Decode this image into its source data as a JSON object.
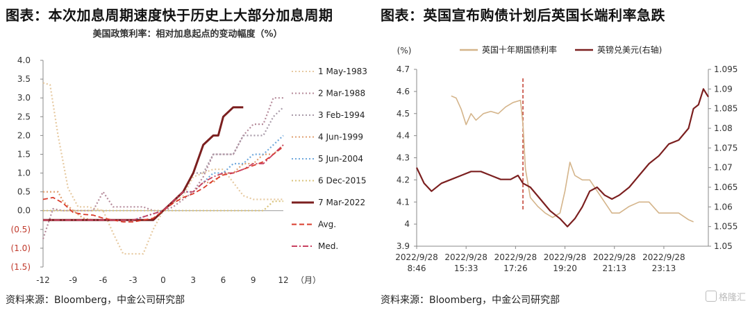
{
  "left": {
    "title": "图表：本次加息周期速度快于历史上大部分加息周期",
    "subtitle": "美国政策利率：相对加息起点的变动幅度（%）",
    "source": "资料来源：Bloomberg，中金公司研究部"
  },
  "right": {
    "title": "图表：英国宣布购债计划后英国长端利率急跌",
    "source": "资料来源：Bloomberg，中金公司研究部"
  },
  "watermark": "格隆汇",
  "chart_data": [
    {
      "type": "line",
      "title": "美国政策利率：相对加息起点的变动幅度（%）",
      "xlabel": "（月）",
      "ylabel": "",
      "xlim": [
        -12,
        12
      ],
      "ylim": [
        -1.5,
        4.0
      ],
      "x_ticks": [
        "-12",
        "-9",
        "-6",
        "-3",
        "0",
        "3",
        "6",
        "9",
        "12"
      ],
      "y_ticks": [
        "4.0",
        "3.5",
        "3.0",
        "2.5",
        "2.0",
        "1.5",
        "1.0",
        "0.5",
        "0.0",
        "(0.5)",
        "(1.0)",
        "(1.5)"
      ],
      "legend_position": "right",
      "series": [
        {
          "name": "1 May-1983",
          "color": "#e6c9a0",
          "dash": "dot",
          "points": [
            [
              -12,
              3.4
            ],
            [
              -11.3,
              3.35
            ],
            [
              -10.5,
              2.0
            ],
            [
              -9.5,
              0.6
            ],
            [
              -8.5,
              0.1
            ],
            [
              -7.5,
              0.1
            ],
            [
              -6,
              0.0
            ],
            [
              -5,
              -0.6
            ],
            [
              -4,
              -1.15
            ],
            [
              -3,
              -1.15
            ],
            [
              -2,
              -1.15
            ],
            [
              -1,
              -0.5
            ],
            [
              0,
              0.0
            ],
            [
              1,
              0.2
            ],
            [
              2,
              0.4
            ],
            [
              3,
              0.9
            ],
            [
              4,
              1.0
            ],
            [
              5,
              1.1
            ],
            [
              6,
              1.1
            ],
            [
              7,
              0.75
            ],
            [
              8,
              0.4
            ],
            [
              9,
              0.3
            ],
            [
              10,
              0.3
            ],
            [
              11,
              0.3
            ],
            [
              12,
              0.3
            ]
          ]
        },
        {
          "name": "2 Mar-1988",
          "color": "#b58a9a",
          "dash": "dot",
          "points": [
            [
              -12,
              -0.75
            ],
            [
              -11,
              0.05
            ],
            [
              -10,
              0.0
            ],
            [
              -9,
              0.0
            ],
            [
              -8,
              0.0
            ],
            [
              -7,
              0.0
            ],
            [
              -6,
              0.5
            ],
            [
              -5,
              0.1
            ],
            [
              -4,
              0.1
            ],
            [
              -3,
              0.1
            ],
            [
              -2,
              0.1
            ],
            [
              -1,
              0.0
            ],
            [
              0,
              0.0
            ],
            [
              1,
              0.1
            ],
            [
              2,
              0.3
            ],
            [
              3,
              0.5
            ],
            [
              4,
              0.9
            ],
            [
              5,
              1.5
            ],
            [
              6,
              1.5
            ],
            [
              7,
              1.5
            ],
            [
              8,
              2.0
            ],
            [
              9,
              2.3
            ],
            [
              10,
              2.3
            ],
            [
              11,
              3.0
            ],
            [
              12,
              3.0
            ]
          ]
        },
        {
          "name": "3 Feb-1994",
          "color": "#a89aa8",
          "dash": "dot",
          "points": [
            [
              -12,
              -0.25
            ],
            [
              -3,
              -0.25
            ],
            [
              0,
              0.0
            ],
            [
              1,
              0.25
            ],
            [
              2,
              0.5
            ],
            [
              3,
              1.0
            ],
            [
              4,
              1.0
            ],
            [
              5,
              1.5
            ],
            [
              6,
              1.5
            ],
            [
              7,
              1.5
            ],
            [
              8,
              2.0
            ],
            [
              9,
              2.0
            ],
            [
              10,
              2.0
            ],
            [
              11,
              2.5
            ],
            [
              12,
              2.75
            ]
          ]
        },
        {
          "name": "4 Jun-1999",
          "color": "#e0a070",
          "dash": "dot",
          "points": [
            [
              -12,
              0.5
            ],
            [
              -10.5,
              0.5
            ],
            [
              -10,
              0.25
            ],
            [
              -9,
              0.0
            ],
            [
              -8,
              -0.2
            ],
            [
              -7,
              -0.25
            ],
            [
              -5,
              -0.25
            ],
            [
              -3,
              -0.25
            ],
            [
              -1,
              -0.25
            ],
            [
              0,
              0.0
            ],
            [
              1,
              0.25
            ],
            [
              2,
              0.5
            ],
            [
              3,
              0.5
            ],
            [
              4,
              0.75
            ],
            [
              5,
              0.75
            ],
            [
              6,
              1.0
            ],
            [
              7,
              1.0
            ],
            [
              8,
              1.25
            ],
            [
              9,
              1.25
            ],
            [
              10,
              1.5
            ],
            [
              11,
              1.5
            ],
            [
              12,
              1.75
            ]
          ]
        },
        {
          "name": "5 Jun-2004",
          "color": "#6fa8dc",
          "dash": "dot",
          "points": [
            [
              -12,
              -0.25
            ],
            [
              -3,
              -0.25
            ],
            [
              0,
              0.0
            ],
            [
              1,
              0.25
            ],
            [
              2,
              0.5
            ],
            [
              3,
              0.5
            ],
            [
              4,
              0.75
            ],
            [
              5,
              1.0
            ],
            [
              6,
              1.0
            ],
            [
              7,
              1.25
            ],
            [
              8,
              1.25
            ],
            [
              9,
              1.5
            ],
            [
              10,
              1.5
            ],
            [
              11,
              1.75
            ],
            [
              12,
              2.0
            ]
          ]
        },
        {
          "name": "6 Dec-2015",
          "color": "#d9c27a",
          "dash": "dot",
          "points": [
            [
              -12,
              0.0
            ],
            [
              -1,
              0.0
            ],
            [
              0,
              0.0
            ],
            [
              2,
              0.0
            ],
            [
              4,
              0.0
            ],
            [
              6,
              0.0
            ],
            [
              8,
              0.0
            ],
            [
              10,
              0.0
            ],
            [
              11,
              0.25
            ],
            [
              12,
              0.25
            ]
          ]
        },
        {
          "name": "7 Mar-2022",
          "color": "#7b1f1f",
          "dash": "solid",
          "points": [
            [
              -12,
              -0.25
            ],
            [
              -1,
              -0.25
            ],
            [
              0,
              0.0
            ],
            [
              1,
              0.25
            ],
            [
              2,
              0.5
            ],
            [
              3,
              1.0
            ],
            [
              4,
              1.75
            ],
            [
              5,
              2.0
            ],
            [
              5.5,
              2.0
            ],
            [
              6,
              2.5
            ],
            [
              7,
              2.75
            ],
            [
              8,
              2.75
            ]
          ]
        },
        {
          "name": "Avg.",
          "color": "#d93a2a",
          "dash": "dash",
          "points": [
            [
              -12,
              0.3
            ],
            [
              -11,
              0.35
            ],
            [
              -10,
              0.2
            ],
            [
              -9,
              -0.05
            ],
            [
              -8,
              -0.1
            ],
            [
              -7,
              -0.12
            ],
            [
              -6,
              -0.2
            ],
            [
              -5,
              -0.25
            ],
            [
              -4,
              -0.3
            ],
            [
              -3,
              -0.3
            ],
            [
              -2,
              -0.25
            ],
            [
              -1,
              -0.2
            ],
            [
              0,
              0.0
            ],
            [
              1,
              0.2
            ],
            [
              2,
              0.35
            ],
            [
              3,
              0.45
            ],
            [
              4,
              0.6
            ],
            [
              5,
              0.8
            ],
            [
              6,
              0.95
            ],
            [
              7,
              1.0
            ],
            [
              8,
              1.1
            ],
            [
              9,
              1.2
            ],
            [
              10,
              1.3
            ],
            [
              11,
              1.5
            ],
            [
              12,
              1.7
            ]
          ]
        },
        {
          "name": "Med.",
          "color": "#c84060",
          "dash": "dashdot",
          "points": [
            [
              -12,
              -0.25
            ],
            [
              -3,
              -0.25
            ],
            [
              0,
              0.0
            ],
            [
              1,
              0.25
            ],
            [
              2,
              0.5
            ],
            [
              3,
              0.5
            ],
            [
              4,
              0.75
            ],
            [
              5,
              0.9
            ],
            [
              6,
              1.0
            ],
            [
              7,
              1.0
            ],
            [
              8,
              1.1
            ],
            [
              9,
              1.25
            ],
            [
              10,
              1.25
            ],
            [
              11,
              1.5
            ],
            [
              12,
              1.75
            ]
          ]
        }
      ]
    },
    {
      "type": "line",
      "title": "",
      "ylabel_left": "(%)",
      "ylim_left": [
        3.9,
        4.7
      ],
      "ylim_right": [
        1.05,
        1.095
      ],
      "y_ticks_left": [
        "4.7",
        "4.6",
        "4.5",
        "4.4",
        "4.3",
        "4.2",
        "4.1",
        "4",
        "3.9"
      ],
      "y_ticks_right": [
        "1.095",
        "1.09",
        "1.085",
        "1.08",
        "1.075",
        "1.07",
        "1.065",
        "1.06",
        "1.055",
        "1.05"
      ],
      "categories": [
        [
          "2022/9/28",
          "8:46"
        ],
        [
          "2022/9/28",
          "15:33"
        ],
        [
          "2022/9/28",
          "17:26"
        ],
        [
          "2022/9/28",
          "19:20"
        ],
        [
          "2022/9/28",
          "21:13"
        ],
        [
          "2022/9/28",
          "23:13"
        ]
      ],
      "event_marker": {
        "x": 2.15,
        "style": "dashed",
        "color": "#c0392b"
      },
      "legend_position": "top",
      "series": [
        {
          "name": "英国十年期国债利率",
          "axis": "left",
          "color": "#d4b48a",
          "points": [
            [
              0.7,
              4.58
            ],
            [
              0.8,
              4.57
            ],
            [
              0.9,
              4.52
            ],
            [
              1.0,
              4.45
            ],
            [
              1.1,
              4.5
            ],
            [
              1.2,
              4.47
            ],
            [
              1.35,
              4.5
            ],
            [
              1.5,
              4.51
            ],
            [
              1.65,
              4.5
            ],
            [
              1.8,
              4.53
            ],
            [
              1.95,
              4.55
            ],
            [
              2.1,
              4.56
            ],
            [
              2.15,
              4.45
            ],
            [
              2.2,
              4.25
            ],
            [
              2.3,
              4.12
            ],
            [
              2.45,
              4.08
            ],
            [
              2.6,
              4.05
            ],
            [
              2.75,
              4.03
            ],
            [
              2.9,
              4.05
            ],
            [
              3.0,
              4.15
            ],
            [
              3.1,
              4.28
            ],
            [
              3.2,
              4.22
            ],
            [
              3.35,
              4.2
            ],
            [
              3.5,
              4.2
            ],
            [
              3.65,
              4.15
            ],
            [
              3.8,
              4.1
            ],
            [
              3.95,
              4.05
            ],
            [
              4.1,
              4.05
            ],
            [
              4.3,
              4.08
            ],
            [
              4.5,
              4.1
            ],
            [
              4.7,
              4.1
            ],
            [
              4.9,
              4.05
            ],
            [
              5.1,
              4.05
            ],
            [
              5.3,
              4.05
            ],
            [
              5.5,
              4.02
            ],
            [
              5.6,
              4.01
            ]
          ]
        },
        {
          "name": "英镑兑美元(右轴)",
          "axis": "right",
          "color": "#7b1f1f",
          "points": [
            [
              0.0,
              1.07
            ],
            [
              0.15,
              1.066
            ],
            [
              0.3,
              1.064
            ],
            [
              0.5,
              1.066
            ],
            [
              0.7,
              1.067
            ],
            [
              0.9,
              1.068
            ],
            [
              1.1,
              1.069
            ],
            [
              1.3,
              1.069
            ],
            [
              1.5,
              1.068
            ],
            [
              1.7,
              1.067
            ],
            [
              1.9,
              1.067
            ],
            [
              2.05,
              1.068
            ],
            [
              2.15,
              1.066
            ],
            [
              2.3,
              1.065
            ],
            [
              2.5,
              1.062
            ],
            [
              2.7,
              1.059
            ],
            [
              2.9,
              1.057
            ],
            [
              3.05,
              1.055
            ],
            [
              3.2,
              1.057
            ],
            [
              3.35,
              1.06
            ],
            [
              3.5,
              1.064
            ],
            [
              3.65,
              1.065
            ],
            [
              3.8,
              1.063
            ],
            [
              3.95,
              1.062
            ],
            [
              4.1,
              1.063
            ],
            [
              4.3,
              1.065
            ],
            [
              4.5,
              1.068
            ],
            [
              4.7,
              1.071
            ],
            [
              4.9,
              1.073
            ],
            [
              5.1,
              1.076
            ],
            [
              5.3,
              1.077
            ],
            [
              5.5,
              1.08
            ],
            [
              5.6,
              1.085
            ],
            [
              5.7,
              1.086
            ],
            [
              5.8,
              1.09
            ],
            [
              5.9,
              1.088
            ]
          ]
        }
      ]
    }
  ]
}
